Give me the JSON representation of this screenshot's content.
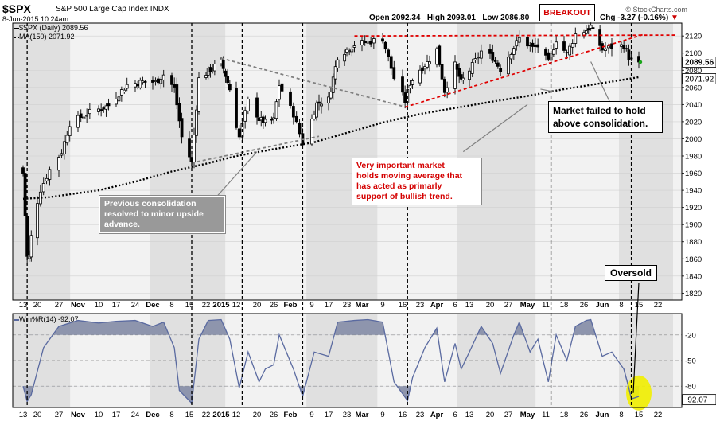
{
  "header": {
    "ticker": "$SPX",
    "name": "S&P 500 Large Cap Index",
    "exchange": "INDX",
    "date": "8-Jun-2015 10:24am",
    "open": "Open 2092.34",
    "high": "High 2093.01",
    "low": "Low 2086.80",
    "change_label": "Chg",
    "change": "-3.27 (-0.16%)",
    "change_arrow": "▼",
    "credit": "© StockCharts.com"
  },
  "legend": {
    "price_series": "$SPX (Daily) 2089.56",
    "ma_series": "MA(150) 2071.92",
    "williams_series": "Wm%R(14) -92.07"
  },
  "last_value_labels": {
    "price": "2089.56",
    "ma": "2071.92",
    "williams": "-92.07"
  },
  "annotations": {
    "breakout": "BREAKOUT",
    "market_failed": [
      "Market failed to hold",
      "above consolidation."
    ],
    "previous_consolidation": [
      "Previous consolidation",
      "resolved to minor upside",
      "advance."
    ],
    "moving_average": [
      "Very important market",
      "holds moving average that",
      "has acted as primarly",
      "support of bullish trend."
    ],
    "oversold": "Oversold"
  },
  "colors": {
    "panel_light": "#f2f2f2",
    "panel_shaded": "#e0e0e0",
    "candle": "#000000",
    "ma_line": "#000000",
    "trend_red": "#e00000",
    "trend_grey": "#808080",
    "williams_line": "#5a6aa0",
    "williams_fill": "#8e95ad",
    "oversold_highlight": "#f2ef00"
  },
  "chart_data": [
    {
      "type": "candlestick",
      "panel": "price",
      "y_axis_side": "right",
      "ylim": [
        1812,
        2135
      ],
      "y_ticks": [
        1820,
        1840,
        1860,
        1880,
        1900,
        1920,
        1940,
        1960,
        1980,
        2000,
        2020,
        2040,
        2060,
        2080,
        2100,
        2120
      ],
      "x_tick_labels": [
        "13",
        "20",
        "27",
        "Nov",
        "10",
        "17",
        "24",
        "Dec",
        "8",
        "15",
        "22",
        "2015",
        "12",
        "20",
        "26",
        "Feb",
        "9",
        "17",
        "23",
        "Mar",
        "9",
        "16",
        "23",
        "Apr",
        "6",
        "13",
        "20",
        "27",
        "May",
        "11",
        "18",
        "26",
        "Jun",
        "8",
        "15",
        "22"
      ],
      "x_tick_bold": [
        "Nov",
        "Dec",
        "2015",
        "Feb",
        "Mar",
        "Apr",
        "May",
        "Jun"
      ],
      "x_range": [
        "2014-10-13",
        "2015-06-22"
      ],
      "shaded_months": [
        "Oct",
        "Dec",
        "Feb",
        "Apr",
        "Jun"
      ],
      "close_path": [
        [
          "2014-10-13",
          1960
        ],
        [
          "2014-10-15",
          1862
        ],
        [
          "2014-10-16",
          1863
        ],
        [
          "2014-10-17",
          1886
        ],
        [
          "2014-10-21",
          1941
        ],
        [
          "2014-10-24",
          1964
        ],
        [
          "2014-10-28",
          1985
        ],
        [
          "2014-10-31",
          2018
        ],
        [
          "2014-11-07",
          2031
        ],
        [
          "2014-11-14",
          2039
        ],
        [
          "2014-11-21",
          2063
        ],
        [
          "2014-11-28",
          2067
        ],
        [
          "2014-12-02",
          2066
        ],
        [
          "2014-12-05",
          2075
        ],
        [
          "2014-12-09",
          2059
        ],
        [
          "2014-12-12",
          2002
        ],
        [
          "2014-12-16",
          1972
        ],
        [
          "2014-12-19",
          2070
        ],
        [
          "2014-12-24",
          2081
        ],
        [
          "2014-12-29",
          2090
        ],
        [
          "2015-01-02",
          2058
        ],
        [
          "2015-01-06",
          2002
        ],
        [
          "2015-01-09",
          2044
        ],
        [
          "2015-01-13",
          2023
        ],
        [
          "2015-01-16",
          2019
        ],
        [
          "2015-01-20",
          2022
        ],
        [
          "2015-01-22",
          2063
        ],
        [
          "2015-01-27",
          2029
        ],
        [
          "2015-01-30",
          1995
        ],
        [
          "2015-02-04",
          2041
        ],
        [
          "2015-02-09",
          2046
        ],
        [
          "2015-02-13",
          2096
        ],
        [
          "2015-02-20",
          2110
        ],
        [
          "2015-02-25",
          2113
        ],
        [
          "2015-03-02",
          2117
        ],
        [
          "2015-03-06",
          2071
        ],
        [
          "2015-03-10",
          2044
        ],
        [
          "2015-03-12",
          2065
        ],
        [
          "2015-03-16",
          2081
        ],
        [
          "2015-03-19",
          2089
        ],
        [
          "2015-03-23",
          2104
        ],
        [
          "2015-03-26",
          2056
        ],
        [
          "2015-03-30",
          2086
        ],
        [
          "2015-04-02",
          2066
        ],
        [
          "2015-04-06",
          2080
        ],
        [
          "2015-04-10",
          2102
        ],
        [
          "2015-04-14",
          2095
        ],
        [
          "2015-04-17",
          2081
        ],
        [
          "2015-04-22",
          2107
        ],
        [
          "2015-04-24",
          2117
        ],
        [
          "2015-04-29",
          2106
        ],
        [
          "2015-05-01",
          2108
        ],
        [
          "2015-05-05",
          2089
        ],
        [
          "2015-05-08",
          2116
        ],
        [
          "2015-05-12",
          2099
        ],
        [
          "2015-05-15",
          2122
        ],
        [
          "2015-05-19",
          2127
        ],
        [
          "2015-05-21",
          2131
        ],
        [
          "2015-05-26",
          2104
        ],
        [
          "2015-05-29",
          2107
        ],
        [
          "2015-06-02",
          2109
        ],
        [
          "2015-06-04",
          2095
        ],
        [
          "2015-06-05",
          2092
        ],
        [
          "2015-06-08",
          2089.56
        ]
      ],
      "ma150_path": [
        [
          "2014-10-13",
          1930
        ],
        [
          "2014-10-24",
          1932
        ],
        [
          "2014-11-10",
          1940
        ],
        [
          "2014-11-24",
          1950
        ],
        [
          "2014-12-08",
          1962
        ],
        [
          "2014-12-22",
          1971
        ],
        [
          "2015-01-05",
          1980
        ],
        [
          "2015-01-20",
          1988
        ],
        [
          "2015-02-03",
          1996
        ],
        [
          "2015-02-17",
          2007
        ],
        [
          "2015-03-02",
          2019
        ],
        [
          "2015-03-16",
          2029
        ],
        [
          "2015-03-30",
          2036
        ],
        [
          "2015-04-13",
          2043
        ],
        [
          "2015-04-27",
          2050
        ],
        [
          "2015-05-11",
          2058
        ],
        [
          "2015-05-26",
          2065
        ],
        [
          "2015-06-08",
          2071.92
        ]
      ],
      "trendlines": [
        {
          "color": "grey",
          "from": [
            "2014-12-16",
            1972
          ],
          "to": [
            "2015-02-05",
            2003
          ]
        },
        {
          "color": "grey",
          "from": [
            "2014-12-29",
            2094
          ],
          "to": [
            "2015-03-09",
            2038
          ]
        },
        {
          "color": "red",
          "from": [
            "2015-03-10",
            2037
          ],
          "to": [
            "2015-06-10",
            2122
          ]
        },
        {
          "color": "red",
          "from": [
            "2015-02-20",
            2120
          ],
          "to": [
            "2015-06-22",
            2121
          ]
        }
      ],
      "vertical_markers": [
        "2014-10-15",
        "2014-12-16",
        "2015-01-07",
        "2015-01-30",
        "2015-03-11",
        "2015-05-06",
        "2015-06-05"
      ],
      "callout_pointers": [
        {
          "from": [
            "2014-12-26",
            1930
          ],
          "to": [
            "2015-01-12",
            1985
          ]
        },
        {
          "from": [
            "2015-04-03",
            1985
          ],
          "to": [
            "2015-04-27",
            2040
          ]
        },
        {
          "from": [
            "2015-05-29",
            2038
          ],
          "to": [
            "2015-05-21",
            2090
          ]
        },
        {
          "from": [
            "2015-05-02",
            2058
          ],
          "to": [
            "2015-05-07",
            2055
          ]
        }
      ]
    },
    {
      "type": "line",
      "panel": "indicator",
      "name": "Wm%R(14)",
      "ylim": [
        -105,
        5
      ],
      "y_ticks": [
        -20,
        -50,
        -80
      ],
      "x_tick_labels": [
        "13",
        "20",
        "27",
        "Nov",
        "10",
        "17",
        "24",
        "Dec",
        "8",
        "15",
        "22",
        "2015",
        "12",
        "20",
        "26",
        "Feb",
        "9",
        "17",
        "23",
        "Mar",
        "9",
        "16",
        "23",
        "Apr",
        "6",
        "13",
        "20",
        "27",
        "May",
        "11",
        "18",
        "26",
        "Jun",
        "8",
        "15",
        "22"
      ],
      "series": [
        [
          "2014-10-13",
          -80
        ],
        [
          "2014-10-15",
          -98
        ],
        [
          "2014-10-17",
          -90
        ],
        [
          "2014-10-22",
          -35
        ],
        [
          "2014-10-27",
          -10
        ],
        [
          "2014-11-03",
          -3
        ],
        [
          "2014-11-10",
          -6
        ],
        [
          "2014-11-17",
          -4
        ],
        [
          "2014-11-24",
          -3
        ],
        [
          "2014-12-01",
          -10
        ],
        [
          "2014-12-05",
          -5
        ],
        [
          "2014-12-09",
          -35
        ],
        [
          "2014-12-11",
          -85
        ],
        [
          "2014-12-16",
          -100
        ],
        [
          "2014-12-19",
          -25
        ],
        [
          "2014-12-23",
          -3
        ],
        [
          "2014-12-29",
          -2
        ],
        [
          "2015-01-02",
          -25
        ],
        [
          "2015-01-06",
          -82
        ],
        [
          "2015-01-09",
          -40
        ],
        [
          "2015-01-13",
          -75
        ],
        [
          "2015-01-16",
          -60
        ],
        [
          "2015-01-20",
          -55
        ],
        [
          "2015-01-22",
          -20
        ],
        [
          "2015-01-27",
          -60
        ],
        [
          "2015-01-30",
          -92
        ],
        [
          "2015-02-03",
          -40
        ],
        [
          "2015-02-09",
          -45
        ],
        [
          "2015-02-13",
          -5
        ],
        [
          "2015-02-20",
          -3
        ],
        [
          "2015-02-25",
          -2
        ],
        [
          "2015-03-02",
          -5
        ],
        [
          "2015-03-06",
          -75
        ],
        [
          "2015-03-11",
          -97
        ],
        [
          "2015-03-13",
          -70
        ],
        [
          "2015-03-18",
          -35
        ],
        [
          "2015-03-23",
          -12
        ],
        [
          "2015-03-26",
          -75
        ],
        [
          "2015-03-30",
          -30
        ],
        [
          "2015-04-02",
          -60
        ],
        [
          "2015-04-06",
          -40
        ],
        [
          "2015-04-10",
          -10
        ],
        [
          "2015-04-14",
          -30
        ],
        [
          "2015-04-17",
          -65
        ],
        [
          "2015-04-22",
          -20
        ],
        [
          "2015-04-24",
          -5
        ],
        [
          "2015-04-28",
          -40
        ],
        [
          "2015-05-01",
          -25
        ],
        [
          "2015-05-05",
          -75
        ],
        [
          "2015-05-08",
          -20
        ],
        [
          "2015-05-12",
          -50
        ],
        [
          "2015-05-15",
          -10
        ],
        [
          "2015-05-19",
          -3
        ],
        [
          "2015-05-21",
          -2
        ],
        [
          "2015-05-26",
          -45
        ],
        [
          "2015-05-29",
          -40
        ],
        [
          "2015-06-02",
          -60
        ],
        [
          "2015-06-04",
          -82
        ],
        [
          "2015-06-05",
          -95
        ],
        [
          "2015-06-08",
          -92.07
        ]
      ],
      "highlight": {
        "date": "2015-06-08",
        "value": -88
      }
    }
  ]
}
